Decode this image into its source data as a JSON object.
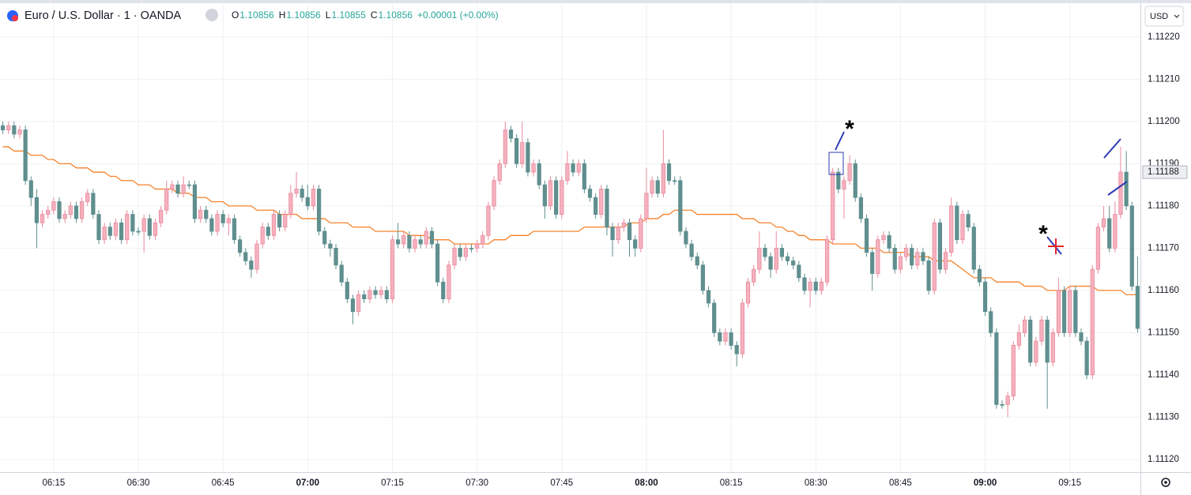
{
  "header": {
    "symbol": "Euro / U.S. Dollar · 1 · OANDA",
    "ohlc": [
      {
        "label": "O",
        "value": "1.10856"
      },
      {
        "label": "H",
        "value": "1.10856"
      },
      {
        "label": "L",
        "value": "1.10855"
      },
      {
        "label": "C",
        "value": "1.10856"
      }
    ],
    "change": "+0.00001 (+0.00%)"
  },
  "currency": "USD",
  "chart_data": {
    "type": "candlestick",
    "colors": {
      "up": "#f5b1be",
      "up_edge": "#e9899c",
      "down": "#5f8f8e",
      "ma": "#f5822a"
    },
    "grid": true,
    "ylim": [
      1.11117,
      1.11228
    ],
    "yticks": [
      {
        "value": 1.1122,
        "label": "1.11220"
      },
      {
        "value": 1.1121,
        "label": "1.11210"
      },
      {
        "value": 1.112,
        "label": "1.11200"
      },
      {
        "value": 1.1119,
        "label": "1.11190"
      },
      {
        "value": 1.1118,
        "label": "1.11180"
      },
      {
        "value": 1.1117,
        "label": "1.11170"
      },
      {
        "value": 1.1116,
        "label": "1.11160"
      },
      {
        "value": 1.1115,
        "label": "1.11150"
      },
      {
        "value": 1.1114,
        "label": "1.11140"
      },
      {
        "value": 1.1113,
        "label": "1.11130"
      },
      {
        "value": 1.1112,
        "label": "1.11120"
      }
    ],
    "current_price": 1.11188,
    "annotations": [
      "*",
      "*"
    ],
    "categories": [
      null,
      null,
      null,
      null,
      null,
      null,
      null,
      null,
      null,
      "06:15",
      null,
      null,
      null,
      null,
      null,
      null,
      null,
      null,
      null,
      null,
      null,
      null,
      null,
      null,
      "06:30",
      null,
      null,
      null,
      null,
      null,
      null,
      null,
      null,
      null,
      null,
      null,
      null,
      null,
      null,
      "06:45",
      null,
      null,
      null,
      null,
      null,
      null,
      null,
      null,
      null,
      null,
      null,
      null,
      null,
      null,
      "07:00",
      null,
      null,
      null,
      null,
      null,
      null,
      null,
      null,
      null,
      null,
      null,
      null,
      null,
      null,
      "07:15",
      null,
      null,
      null,
      null,
      null,
      null,
      null,
      null,
      null,
      null,
      null,
      null,
      null,
      null,
      "07:30",
      null,
      null,
      null,
      null,
      null,
      null,
      null,
      null,
      null,
      null,
      null,
      null,
      null,
      null,
      "07:45",
      null,
      null,
      null,
      null,
      null,
      null,
      null,
      null,
      null,
      null,
      null,
      null,
      null,
      null,
      "08:00",
      null,
      null,
      null,
      null,
      null,
      null,
      null,
      null,
      null,
      null,
      null,
      null,
      null,
      null,
      "08:15",
      null,
      null,
      null,
      null,
      null,
      null,
      null,
      null,
      null,
      null,
      null,
      null,
      null,
      null,
      "08:30",
      null,
      null,
      null,
      null,
      null,
      null,
      null,
      null,
      null,
      null,
      null,
      null,
      null,
      null,
      "08:45",
      null,
      null,
      null,
      null,
      null,
      null,
      null,
      null,
      null,
      null,
      null,
      null,
      null,
      null,
      "09:00",
      null,
      null,
      null,
      null,
      null,
      null,
      null,
      null,
      null,
      null,
      null,
      null,
      null,
      null,
      "09:15",
      null,
      null,
      null,
      null,
      null,
      null,
      null,
      null,
      null,
      null,
      null,
      null
    ],
    "open": [
      1.11199,
      1.11198,
      1.11199,
      1.11197,
      1.11198,
      1.11186,
      1.11182,
      1.11176,
      1.11178,
      1.11179,
      1.11181,
      1.11177,
      1.11178,
      1.1118,
      1.11177,
      1.11181,
      1.11183,
      1.11178,
      1.11172,
      1.11175,
      1.11173,
      1.11176,
      1.11172,
      1.11178,
      1.11174,
      1.11174,
      1.11177,
      1.11173,
      1.11176,
      1.11179,
      1.11184,
      1.11185,
      1.11183,
      1.11185,
      1.11185,
      1.11177,
      1.11179,
      1.11177,
      1.11174,
      1.11178,
      1.11176,
      1.11177,
      1.11172,
      1.11169,
      1.11167,
      1.11165,
      1.11171,
      1.11175,
      1.11173,
      1.11178,
      1.11175,
      1.11178,
      1.11183,
      1.11184,
      1.11182,
      1.1118,
      1.11184,
      1.11174,
      1.11171,
      1.1117,
      1.11166,
      1.11162,
      1.11158,
      1.11155,
      1.11159,
      1.11158,
      1.1116,
      1.11159,
      1.1116,
      1.11158,
      1.11172,
      1.11171,
      1.11173,
      1.1117,
      1.11172,
      1.11171,
      1.11174,
      1.11171,
      1.11162,
      1.11158,
      1.11166,
      1.1117,
      1.11168,
      1.1117,
      1.1117,
      1.11171,
      1.11173,
      1.1118,
      1.11186,
      1.1119,
      1.11198,
      1.11196,
      1.1119,
      1.11195,
      1.11188,
      1.1119,
      1.11185,
      1.1118,
      1.11186,
      1.11178,
      1.11186,
      1.1119,
      1.11188,
      1.1119,
      1.11184,
      1.11182,
      1.11178,
      1.11184,
      1.11175,
      1.11172,
      1.11175,
      1.11176,
      1.11172,
      1.1117,
      1.11177,
      1.11183,
      1.11186,
      1.11183,
      1.1119,
      1.11186,
      1.11186,
      1.11174,
      1.11171,
      1.11168,
      1.11166,
      1.1116,
      1.11157,
      1.1115,
      1.11148,
      1.1115,
      1.11147,
      1.11145,
      1.11157,
      1.11162,
      1.11165,
      1.1117,
      1.11168,
      1.11165,
      1.1117,
      1.11168,
      1.11167,
      1.11166,
      1.11163,
      1.1116,
      1.11162,
      1.1116,
      1.11162,
      1.11172,
      1.11188,
      1.11184,
      1.11186,
      1.1119,
      1.11182,
      1.11177,
      1.11169,
      1.11164,
      1.11172,
      1.11173,
      1.1117,
      1.11165,
      1.11168,
      1.1117,
      1.11166,
      1.11169,
      1.11167,
      1.1116,
      1.11176,
      1.11165,
      1.11169,
      1.1118,
      1.11172,
      1.11178,
      1.11175,
      1.11165,
      1.11162,
      1.11155,
      1.1115,
      1.11133,
      1.11133,
      1.11135,
      1.11147,
      1.1115,
      1.11153,
      1.11143,
      1.11148,
      1.11153,
      1.11143,
      1.1115,
      1.1116,
      1.1115,
      1.1116,
      1.1115,
      1.11148,
      1.1114,
      1.11165,
      1.11175,
      1.11177,
      1.1117,
      1.11178,
      1.11188,
      1.1118,
      1.11161
    ],
    "high": [
      1.112,
      1.112,
      1.112,
      1.11199,
      1.11199,
      1.11187,
      1.11184,
      1.11179,
      1.1118,
      1.11182,
      1.11182,
      1.11179,
      1.11181,
      1.11181,
      1.11182,
      1.11184,
      1.11184,
      1.11179,
      1.11176,
      1.11176,
      1.11177,
      1.11177,
      1.11179,
      1.11179,
      1.11175,
      1.11178,
      1.11178,
      1.11177,
      1.1118,
      1.11186,
      1.11186,
      1.11186,
      1.11187,
      1.11186,
      1.11186,
      1.1118,
      1.1118,
      1.11178,
      1.11179,
      1.11179,
      1.11178,
      1.11178,
      1.11173,
      1.1117,
      1.11168,
      1.11172,
      1.11176,
      1.11176,
      1.11179,
      1.11179,
      1.11179,
      1.11185,
      1.11188,
      1.11185,
      1.11185,
      1.11185,
      1.11185,
      1.11175,
      1.11172,
      1.11171,
      1.11167,
      1.11163,
      1.11159,
      1.1116,
      1.1116,
      1.11161,
      1.11161,
      1.11161,
      1.11161,
      1.11173,
      1.11176,
      1.11174,
      1.11174,
      1.11173,
      1.11173,
      1.11175,
      1.11175,
      1.11172,
      1.11163,
      1.11167,
      1.11171,
      1.11171,
      1.11171,
      1.11171,
      1.11172,
      1.11174,
      1.11181,
      1.11187,
      1.11191,
      1.112,
      1.11199,
      1.11197,
      1.112,
      1.11196,
      1.11191,
      1.11191,
      1.11186,
      1.11187,
      1.11187,
      1.11187,
      1.11193,
      1.11191,
      1.11191,
      1.11191,
      1.11185,
      1.11183,
      1.11185,
      1.11185,
      1.11176,
      1.11176,
      1.11177,
      1.11177,
      1.11173,
      1.11178,
      1.11189,
      1.11187,
      1.11187,
      1.11198,
      1.11191,
      1.11187,
      1.11187,
      1.11175,
      1.11172,
      1.11169,
      1.11167,
      1.11161,
      1.11158,
      1.11151,
      1.11151,
      1.11151,
      1.11148,
      1.11158,
      1.11163,
      1.11166,
      1.11174,
      1.11171,
      1.11169,
      1.11174,
      1.11171,
      1.11169,
      1.11168,
      1.11167,
      1.11164,
      1.11163,
      1.11163,
      1.11163,
      1.11173,
      1.11189,
      1.11189,
      1.11187,
      1.11192,
      1.11191,
      1.11183,
      1.11178,
      1.1117,
      1.11173,
      1.11174,
      1.11174,
      1.11171,
      1.11169,
      1.11171,
      1.11171,
      1.1117,
      1.1117,
      1.11168,
      1.11177,
      1.11177,
      1.1117,
      1.11182,
      1.11181,
      1.11179,
      1.11179,
      1.11176,
      1.11166,
      1.11163,
      1.11156,
      1.11151,
      1.11134,
      1.11136,
      1.11148,
      1.11152,
      1.11154,
      1.11154,
      1.11149,
      1.11154,
      1.11154,
      1.11151,
      1.11163,
      1.11161,
      1.11161,
      1.11161,
      1.11151,
      1.11149,
      1.11166,
      1.11176,
      1.1118,
      1.1118,
      1.11181,
      1.11194,
      1.11193,
      1.11181,
      1.11168
    ],
    "low": [
      1.11197,
      1.11197,
      1.11196,
      1.11196,
      1.11185,
      1.1118,
      1.1117,
      1.11175,
      1.11177,
      1.11178,
      1.11176,
      1.11176,
      1.11177,
      1.11176,
      1.11176,
      1.1118,
      1.11177,
      1.11171,
      1.11171,
      1.11172,
      1.11172,
      1.11171,
      1.11171,
      1.11173,
      1.11173,
      1.11169,
      1.11172,
      1.11172,
      1.11175,
      1.11178,
      1.11183,
      1.11182,
      1.11182,
      1.11184,
      1.11176,
      1.11176,
      1.11176,
      1.11173,
      1.11173,
      1.11175,
      1.11173,
      1.11171,
      1.11168,
      1.11166,
      1.11163,
      1.11164,
      1.1117,
      1.11172,
      1.11172,
      1.11174,
      1.11174,
      1.11177,
      1.11182,
      1.11181,
      1.11179,
      1.11179,
      1.11173,
      1.1117,
      1.11168,
      1.11165,
      1.11161,
      1.11157,
      1.11152,
      1.11154,
      1.11157,
      1.11157,
      1.11158,
      1.11158,
      1.11157,
      1.11157,
      1.1117,
      1.1117,
      1.11169,
      1.11169,
      1.1117,
      1.1117,
      1.1117,
      1.11161,
      1.11157,
      1.11157,
      1.11165,
      1.11167,
      1.11167,
      1.11169,
      1.11169,
      1.1117,
      1.11172,
      1.11179,
      1.11185,
      1.11189,
      1.11195,
      1.11189,
      1.11189,
      1.11187,
      1.11187,
      1.11184,
      1.11177,
      1.11179,
      1.11177,
      1.11177,
      1.11185,
      1.11187,
      1.11187,
      1.11183,
      1.11181,
      1.11177,
      1.11177,
      1.11173,
      1.11168,
      1.11171,
      1.11174,
      1.11168,
      1.11168,
      1.11169,
      1.11176,
      1.11182,
      1.11182,
      1.11182,
      1.11185,
      1.11185,
      1.11173,
      1.1117,
      1.11167,
      1.11165,
      1.11159,
      1.11156,
      1.11149,
      1.11147,
      1.11147,
      1.11146,
      1.11142,
      1.11144,
      1.11156,
      1.11161,
      1.11164,
      1.11167,
      1.11163,
      1.11164,
      1.11167,
      1.11166,
      1.11165,
      1.11162,
      1.11159,
      1.11156,
      1.11159,
      1.11159,
      1.11161,
      1.11171,
      1.11183,
      1.11177,
      1.11185,
      1.11181,
      1.11176,
      1.11168,
      1.1116,
      1.11163,
      1.11171,
      1.11169,
      1.11164,
      1.11164,
      1.11167,
      1.11165,
      1.11165,
      1.11166,
      1.11159,
      1.11159,
      1.11164,
      1.11164,
      1.11168,
      1.11171,
      1.11171,
      1.11174,
      1.11164,
      1.11161,
      1.11154,
      1.11149,
      1.11132,
      1.11132,
      1.1113,
      1.11134,
      1.11146,
      1.11149,
      1.11142,
      1.11142,
      1.11147,
      1.11132,
      1.11142,
      1.11149,
      1.11149,
      1.11149,
      1.11149,
      1.11147,
      1.11139,
      1.11139,
      1.11164,
      1.11174,
      1.11169,
      1.11169,
      1.11177,
      1.11179,
      1.1116,
      1.1115
    ],
    "close": [
      1.11198,
      1.11199,
      1.11197,
      1.11198,
      1.11186,
      1.11182,
      1.11176,
      1.11178,
      1.11179,
      1.11181,
      1.11177,
      1.11178,
      1.1118,
      1.11177,
      1.11181,
      1.11183,
      1.11178,
      1.11172,
      1.11175,
      1.11173,
      1.11176,
      1.11172,
      1.11178,
      1.11174,
      1.11174,
      1.11177,
      1.11173,
      1.11176,
      1.11179,
      1.11184,
      1.11185,
      1.11183,
      1.11185,
      1.11185,
      1.11177,
      1.11179,
      1.11177,
      1.11174,
      1.11178,
      1.11176,
      1.11177,
      1.11172,
      1.11169,
      1.11167,
      1.11165,
      1.11171,
      1.11175,
      1.11173,
      1.11178,
      1.11175,
      1.11178,
      1.11183,
      1.11184,
      1.11182,
      1.1118,
      1.11184,
      1.11174,
      1.11171,
      1.1117,
      1.11166,
      1.11162,
      1.11158,
      1.11155,
      1.11159,
      1.11158,
      1.1116,
      1.11159,
      1.1116,
      1.11158,
      1.11172,
      1.11171,
      1.11173,
      1.1117,
      1.11172,
      1.11171,
      1.11174,
      1.11171,
      1.11162,
      1.11158,
      1.11166,
      1.1117,
      1.11168,
      1.1117,
      1.1117,
      1.11171,
      1.11173,
      1.1118,
      1.11186,
      1.1119,
      1.11198,
      1.11196,
      1.1119,
      1.11195,
      1.11188,
      1.1119,
      1.11185,
      1.1118,
      1.11186,
      1.11178,
      1.11186,
      1.1119,
      1.11188,
      1.1119,
      1.11184,
      1.11182,
      1.11178,
      1.11184,
      1.11175,
      1.11172,
      1.11175,
      1.11176,
      1.11172,
      1.1117,
      1.11177,
      1.11183,
      1.11186,
      1.11183,
      1.1119,
      1.11186,
      1.11186,
      1.11174,
      1.11171,
      1.11168,
      1.11166,
      1.1116,
      1.11157,
      1.1115,
      1.11148,
      1.1115,
      1.11147,
      1.11145,
      1.11157,
      1.11162,
      1.11165,
      1.1117,
      1.11168,
      1.11165,
      1.1117,
      1.11168,
      1.11167,
      1.11166,
      1.11163,
      1.1116,
      1.11162,
      1.1116,
      1.11162,
      1.11172,
      1.11188,
      1.11184,
      1.11186,
      1.1119,
      1.11182,
      1.11177,
      1.11169,
      1.11164,
      1.11172,
      1.11173,
      1.1117,
      1.11165,
      1.11168,
      1.1117,
      1.11166,
      1.11169,
      1.11167,
      1.1116,
      1.11176,
      1.11165,
      1.11169,
      1.1118,
      1.11172,
      1.11178,
      1.11175,
      1.11165,
      1.11162,
      1.11155,
      1.1115,
      1.11133,
      1.11133,
      1.11135,
      1.11147,
      1.1115,
      1.11153,
      1.11143,
      1.11148,
      1.11153,
      1.11143,
      1.1115,
      1.1116,
      1.1115,
      1.1116,
      1.1115,
      1.11148,
      1.1114,
      1.11165,
      1.11175,
      1.11177,
      1.1117,
      1.11178,
      1.11188,
      1.1118,
      1.11161,
      1.11151
    ],
    "ma": {
      "values": [
        1.11194,
        1.11194,
        1.11193,
        1.11193,
        1.11193,
        1.11192,
        1.11192,
        1.11192,
        1.11191,
        1.11191,
        1.1119,
        1.1119,
        1.1119,
        1.11189,
        1.11189,
        1.11189,
        1.11188,
        1.11188,
        1.11188,
        1.11187,
        1.11187,
        1.11186,
        1.11186,
        1.11186,
        1.11185,
        1.11185,
        1.11185,
        1.11184,
        1.11184,
        1.11184,
        1.11184,
        1.11183,
        1.11183,
        1.11183,
        1.11182,
        1.11182,
        1.11182,
        1.11181,
        1.11181,
        1.11181,
        1.1118,
        1.1118,
        1.1118,
        1.1118,
        1.1118,
        1.11179,
        1.11179,
        1.11179,
        1.11179,
        1.11178,
        1.11178,
        1.11178,
        1.11178,
        1.11177,
        1.11177,
        1.11177,
        1.11177,
        1.11177,
        1.11176,
        1.11176,
        1.11176,
        1.11176,
        1.11175,
        1.11175,
        1.11175,
        1.11175,
        1.11174,
        1.11174,
        1.11174,
        1.11174,
        1.11174,
        1.11174,
        1.11173,
        1.11173,
        1.11173,
        1.11173,
        1.11172,
        1.11172,
        1.11172,
        1.11172,
        1.11171,
        1.11171,
        1.11171,
        1.11171,
        1.11171,
        1.11171,
        1.11171,
        1.11172,
        1.11172,
        1.11172,
        1.11173,
        1.11173,
        1.11173,
        1.11173,
        1.11174,
        1.11174,
        1.11174,
        1.11174,
        1.11174,
        1.11174,
        1.11174,
        1.11174,
        1.11174,
        1.11175,
        1.11175,
        1.11175,
        1.11175,
        1.11175,
        1.11175,
        1.11175,
        1.11175,
        1.11176,
        1.11176,
        1.11176,
        1.11177,
        1.11177,
        1.11177,
        1.11178,
        1.11178,
        1.11179,
        1.11179,
        1.11179,
        1.11179,
        1.11178,
        1.11178,
        1.11178,
        1.11178,
        1.11178,
        1.11178,
        1.11178,
        1.11178,
        1.11177,
        1.11177,
        1.11177,
        1.11176,
        1.11176,
        1.11176,
        1.11175,
        1.11175,
        1.11174,
        1.11174,
        1.11173,
        1.11173,
        1.11172,
        1.11172,
        1.11172,
        1.11172,
        1.11171,
        1.11171,
        1.11171,
        1.11171,
        1.11171,
        1.1117,
        1.1117,
        1.1117,
        1.1117,
        1.11169,
        1.11169,
        1.11169,
        1.11169,
        1.11169,
        1.11168,
        1.11168,
        1.11168,
        1.11168,
        1.11167,
        1.11167,
        1.11167,
        1.11167,
        1.11166,
        1.11165,
        1.11164,
        1.11163,
        1.11163,
        1.11163,
        1.11163,
        1.11162,
        1.11162,
        1.11162,
        1.11162,
        1.11162,
        1.11161,
        1.11161,
        1.11161,
        1.11161,
        1.1116,
        1.1116,
        1.1116,
        1.1116,
        1.11161,
        1.11161,
        1.11161,
        1.11161,
        1.11161,
        1.1116,
        1.1116,
        1.1116,
        1.1116,
        1.1116,
        1.11159,
        1.11159,
        1.11159
      ]
    }
  }
}
